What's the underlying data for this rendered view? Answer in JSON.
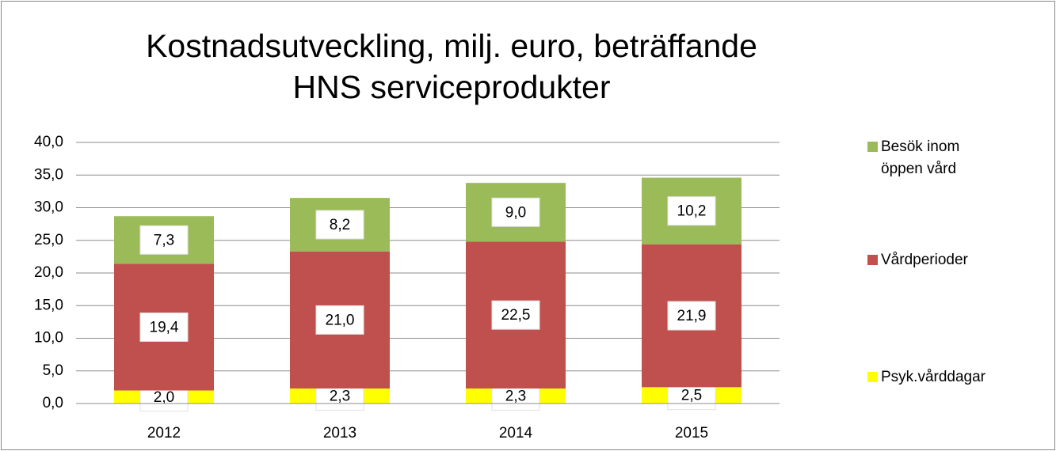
{
  "chart_data": {
    "type": "stacked_bar",
    "title": "Kostnadsutveckling, milj. euro, beträffande HNS serviceprodukter",
    "categories": [
      "2012",
      "2013",
      "2014",
      "2015"
    ],
    "series": [
      {
        "name": "Psyk.vårddagar",
        "color": "#ffff00",
        "values": [
          2.0,
          2.3,
          2.3,
          2.5
        ],
        "value_labels": [
          "2,0",
          "2,3",
          "2,3",
          "2,5"
        ]
      },
      {
        "name": "Vårdperioder",
        "color": "#c0504d",
        "values": [
          19.4,
          21.0,
          22.5,
          21.9
        ],
        "value_labels": [
          "19,4",
          "21,0",
          "22,5",
          "21,9"
        ]
      },
      {
        "name": "Besök inom öppen vård",
        "color": "#9bbb59",
        "values": [
          7.3,
          8.2,
          9.0,
          10.2
        ],
        "value_labels": [
          "7,3",
          "8,2",
          "9,0",
          "10,2"
        ]
      }
    ],
    "ylim": [
      0,
      40
    ],
    "yticks": [
      {
        "value": 0,
        "label": "0,0"
      },
      {
        "value": 5,
        "label": "5,0"
      },
      {
        "value": 10,
        "label": "10,0"
      },
      {
        "value": 15,
        "label": "15,0"
      },
      {
        "value": 20,
        "label": "20,0"
      },
      {
        "value": 25,
        "label": "25,0"
      },
      {
        "value": 30,
        "label": "30,0"
      },
      {
        "value": 35,
        "label": "35,0"
      },
      {
        "value": 40,
        "label": "40,0"
      }
    ],
    "grid": true,
    "legend": "right"
  }
}
